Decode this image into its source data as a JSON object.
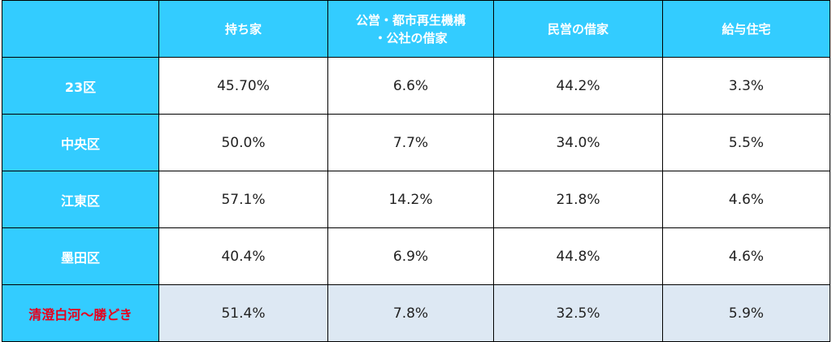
{
  "table": {
    "columns": [
      [
        "持ち家"
      ],
      [
        "公営・都市再生機構",
        "・公社の借家"
      ],
      [
        "民営の借家"
      ],
      [
        "給与住宅"
      ]
    ],
    "rows": [
      {
        "label": "23区",
        "cells": [
          "45.70%",
          "6.6%",
          "44.2%",
          "3.3%"
        ]
      },
      {
        "label": "中央区",
        "cells": [
          "50.0%",
          "7.7%",
          "34.0%",
          "5.5%"
        ]
      },
      {
        "label": "江東区",
        "cells": [
          "57.1%",
          "14.2%",
          "21.8%",
          "4.6%"
        ]
      },
      {
        "label": "墨田区",
        "cells": [
          "40.4%",
          "6.9%",
          "44.8%",
          "4.6%"
        ]
      },
      {
        "label": "清澄白河〜勝どき",
        "cells": [
          "51.4%",
          "7.8%",
          "32.5%",
          "5.9%"
        ],
        "highlight": true
      }
    ]
  }
}
